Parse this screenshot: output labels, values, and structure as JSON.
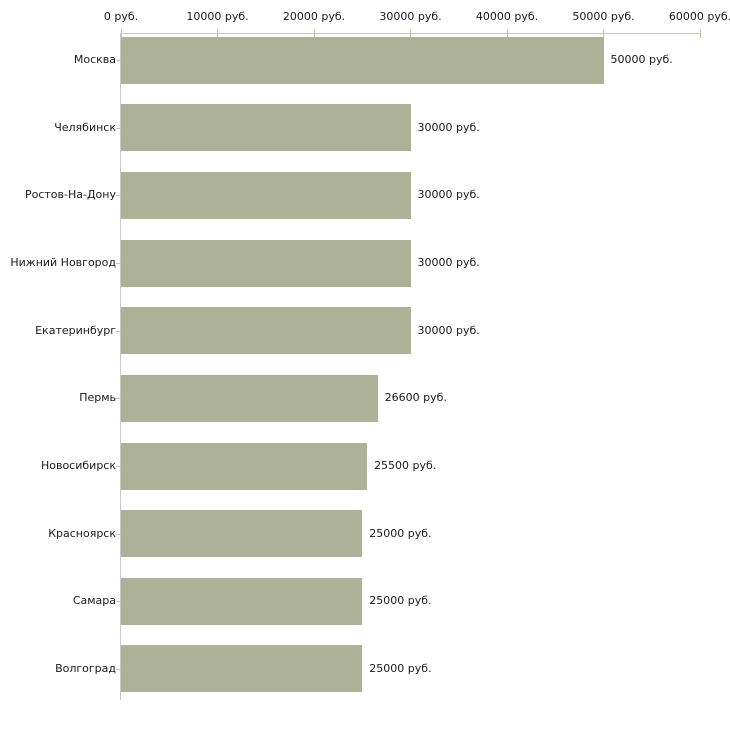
{
  "chart_data": {
    "type": "bar",
    "orientation": "horizontal",
    "title": "",
    "xlabel": "",
    "ylabel": "",
    "categories": [
      "Москва",
      "Челябинск",
      "Ростов-На-Дону",
      "Нижний Новгород",
      "Екатеринбург",
      "Пермь",
      "Новосибирск",
      "Красноярск",
      "Самара",
      "Волгоград"
    ],
    "values": [
      50000,
      30000,
      30000,
      30000,
      30000,
      26600,
      25500,
      25000,
      25000,
      25000
    ],
    "value_labels": [
      "50000 руб.",
      "30000 руб.",
      "30000 руб.",
      "30000 руб.",
      "30000 руб.",
      "26600 руб.",
      "25500 руб.",
      "25000 руб.",
      "25000 руб.",
      "25000 руб."
    ],
    "x_ticks": [
      0,
      10000,
      20000,
      30000,
      40000,
      50000,
      60000
    ],
    "x_tick_labels": [
      "0 руб.",
      "10000 руб.",
      "20000 руб.",
      "30000 руб.",
      "40000 руб.",
      "50000 руб.",
      "60000 руб."
    ],
    "xlim": [
      0,
      60000
    ],
    "grid": false,
    "legend": "none",
    "colors": {
      "bar": "#acb197",
      "axis_line": "#c8c8c8",
      "tick": "#c9c99e",
      "text": "#1a1a1a",
      "background": "#ffffff"
    }
  }
}
